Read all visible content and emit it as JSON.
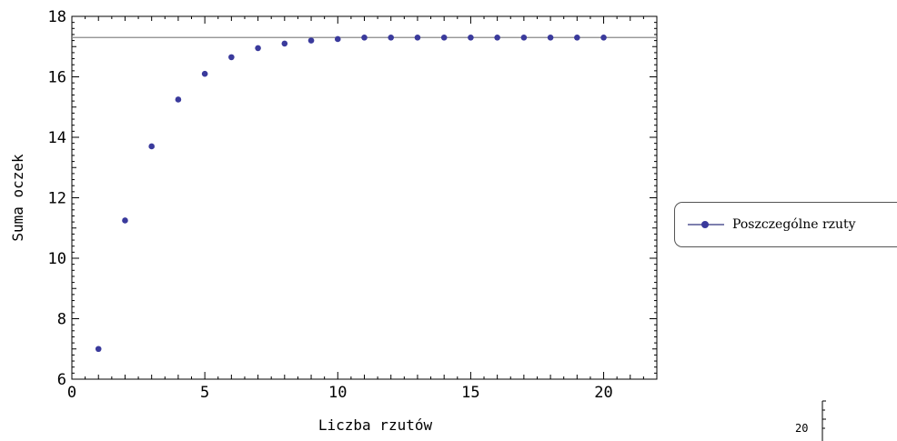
{
  "chart_data": {
    "type": "scatter",
    "xlabel": "Liczba rzutów",
    "ylabel": "Suma oczek",
    "xlim": [
      0,
      22
    ],
    "ylim": [
      6,
      18
    ],
    "x_ticks": [
      0,
      5,
      10,
      15,
      20
    ],
    "y_ticks": [
      6,
      8,
      10,
      12,
      14,
      16,
      18
    ],
    "grid": false,
    "legend_position": "right",
    "series": [
      {
        "name": "Poszczególne rzuty",
        "color": "#3a3a9c",
        "x": [
          1,
          2,
          3,
          4,
          5,
          6,
          7,
          8,
          9,
          10,
          11,
          12,
          13,
          14,
          15,
          16,
          17,
          18,
          19,
          20
        ],
        "y": [
          7.0,
          11.25,
          13.7,
          15.25,
          16.1,
          16.65,
          16.95,
          17.1,
          17.2,
          17.25,
          17.3,
          17.3,
          17.3,
          17.3,
          17.3,
          17.3,
          17.3,
          17.3,
          17.3,
          17.3
        ]
      }
    ],
    "reference_line": {
      "y": 17.3,
      "color": "#888888"
    }
  },
  "corner_axis": {
    "tick_label": "20"
  }
}
